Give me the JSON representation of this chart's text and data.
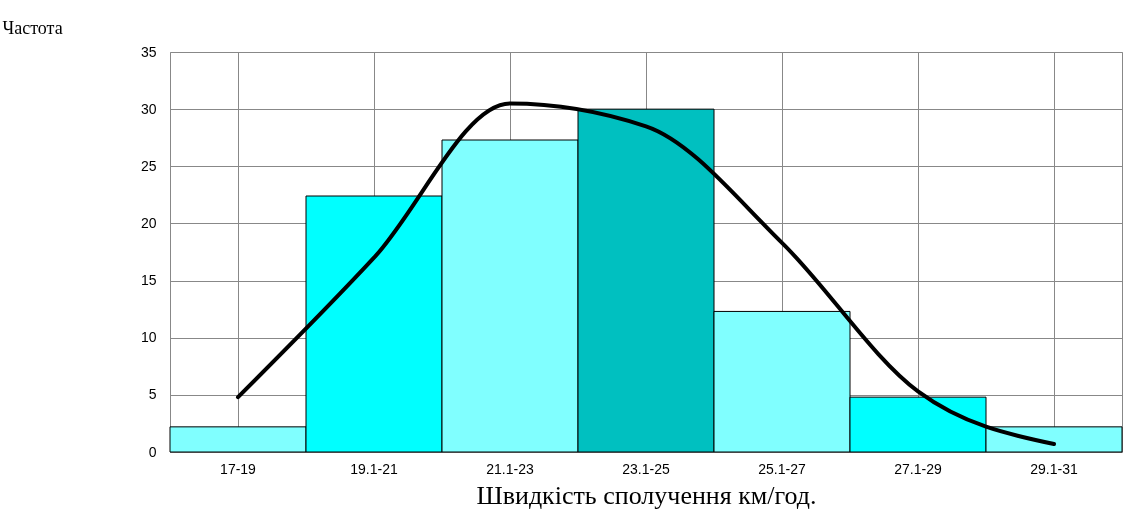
{
  "chart_data": {
    "type": "bar",
    "xlabel": "Швидкість сполучення км/год.",
    "ylabel": "Частота",
    "categories": [
      "17-19",
      "19.1-21",
      "21.1-23",
      "23.1-25",
      "25.1-27",
      "27.1-29",
      "29.1-31"
    ],
    "series": [
      {
        "values": [
          2.2,
          22.4,
          27.3,
          30,
          12.3,
          4.8,
          2.2
        ],
        "colors": [
          "#80ffff",
          "#00ffff",
          "#80ffff",
          "#00c0c0",
          "#80ffff",
          "#00ffff",
          "#80ffff"
        ]
      },
      {
        "type": "line",
        "color": "#000000",
        "values": [
          4.8,
          17,
          30.5,
          28.5,
          18.3,
          5.3,
          0.7
        ]
      }
    ],
    "ylim": [
      0,
      35
    ],
    "yticks": [
      0,
      5,
      10,
      15,
      20,
      25,
      30,
      35
    ],
    "grid": true,
    "line_style": "solid"
  }
}
